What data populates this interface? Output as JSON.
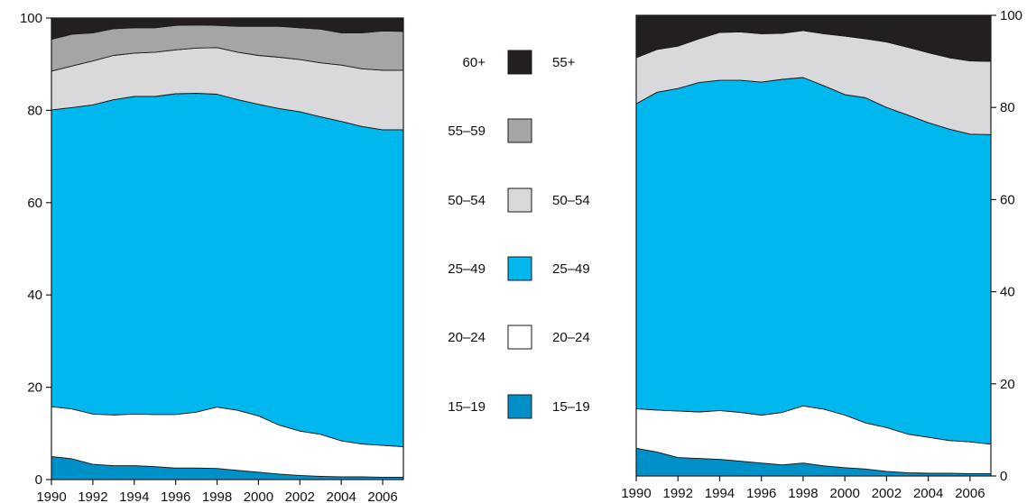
{
  "chart_data": [
    {
      "type": "area",
      "stacked": true,
      "x": [
        1990,
        1991,
        1992,
        1993,
        1994,
        1995,
        1996,
        1997,
        1998,
        1999,
        2000,
        2001,
        2002,
        2003,
        2004,
        2005,
        2006,
        2007
      ],
      "xticks": [
        "1990",
        "1992",
        "1994",
        "1996",
        "1998",
        "2000",
        "2002",
        "2004",
        "2006"
      ],
      "ylim": [
        0,
        100
      ],
      "yticks": [
        "0",
        "20",
        "40",
        "60",
        "80",
        "100"
      ],
      "yaxis_side": "left",
      "grid": false,
      "series": [
        {
          "name": "15–19",
          "color": "#0090c8",
          "values": [
            5.0,
            4.5,
            3.3,
            3.0,
            3.0,
            2.8,
            2.5,
            2.5,
            2.4,
            2.0,
            1.6,
            1.2,
            0.9,
            0.7,
            0.6,
            0.6,
            0.5,
            0.5
          ]
        },
        {
          "name": "20–24",
          "color": "#ffffff",
          "values": [
            10.8,
            10.8,
            10.9,
            11.0,
            11.2,
            11.3,
            11.6,
            12.1,
            13.3,
            13.0,
            12.2,
            10.6,
            9.6,
            9.1,
            7.8,
            7.1,
            6.9,
            6.6
          ]
        },
        {
          "name": "25–49",
          "color": "#00b8ee",
          "values": [
            64.3,
            65.3,
            67.0,
            68.3,
            68.8,
            68.9,
            69.5,
            69.1,
            67.8,
            67.3,
            67.5,
            68.6,
            69.2,
            68.8,
            69.2,
            68.8,
            68.4,
            68.7
          ]
        },
        {
          "name": "50–54",
          "color": "#d9d9db",
          "values": [
            8.4,
            9.0,
            9.5,
            9.6,
            9.4,
            9.6,
            9.5,
            9.8,
            10.1,
            10.3,
            10.6,
            11.1,
            11.3,
            11.7,
            12.2,
            12.5,
            12.9,
            12.9
          ]
        },
        {
          "name": "55–59",
          "color": "#a5a5a8",
          "values": [
            6.9,
            6.9,
            6.1,
            5.8,
            5.5,
            5.3,
            5.3,
            5.0,
            4.8,
            5.6,
            6.3,
            6.7,
            6.9,
            7.3,
            7.0,
            7.8,
            8.5,
            8.4
          ]
        },
        {
          "name": "60+",
          "color": "#231f20",
          "values": [
            4.6,
            3.5,
            3.2,
            2.3,
            2.1,
            2.1,
            1.6,
            1.5,
            1.6,
            1.8,
            1.8,
            1.8,
            2.1,
            2.4,
            3.2,
            3.2,
            2.8,
            2.9
          ]
        }
      ]
    },
    {
      "type": "area",
      "stacked": true,
      "x": [
        1990,
        1991,
        1992,
        1993,
        1994,
        1995,
        1996,
        1997,
        1998,
        1999,
        2000,
        2001,
        2002,
        2003,
        2004,
        2005,
        2006,
        2007
      ],
      "xticks": [
        "1990",
        "1992",
        "1994",
        "1996",
        "1998",
        "2000",
        "2002",
        "2004",
        "2006"
      ],
      "ylim": [
        0,
        100
      ],
      "yticks": [
        "0",
        "20",
        "40",
        "60",
        "80",
        "100"
      ],
      "yaxis_side": "right",
      "grid": false,
      "series": [
        {
          "name": "15–19",
          "color": "#0090c8",
          "values": [
            6.0,
            5.2,
            4.0,
            3.8,
            3.6,
            3.2,
            2.8,
            2.4,
            2.8,
            2.2,
            1.8,
            1.5,
            1.0,
            0.7,
            0.6,
            0.6,
            0.5,
            0.5
          ]
        },
        {
          "name": "20–24",
          "color": "#ffffff",
          "values": [
            8.6,
            9.1,
            10.1,
            10.1,
            10.6,
            10.6,
            10.4,
            11.4,
            12.4,
            12.3,
            11.4,
            10.0,
            9.5,
            8.4,
            7.8,
            7.1,
            6.9,
            6.4
          ]
        },
        {
          "name": "25–49",
          "color": "#00b8ee",
          "values": [
            66.2,
            69.0,
            70.0,
            71.5,
            71.7,
            72.1,
            72.3,
            72.3,
            71.3,
            70.2,
            69.6,
            70.6,
            69.5,
            69.3,
            68.3,
            67.6,
            66.8,
            67.2
          ]
        },
        {
          "name": "50–54",
          "color": "#d9d9db",
          "values": [
            10.0,
            9.3,
            9.2,
            9.5,
            10.4,
            10.5,
            10.5,
            10.0,
            10.2,
            11.3,
            12.7,
            12.8,
            14.2,
            14.7,
            15.2,
            15.5,
            15.9,
            15.9
          ]
        },
        {
          "name": "55+",
          "color": "#231f20",
          "values": [
            9.2,
            7.4,
            6.7,
            5.1,
            3.7,
            3.6,
            4.0,
            3.9,
            3.3,
            4.0,
            4.5,
            5.1,
            5.8,
            6.9,
            8.1,
            9.2,
            9.9,
            10.0
          ]
        }
      ]
    }
  ],
  "legend": {
    "left_labels": [
      "60+",
      "55–59",
      "50–54",
      "25–49",
      "20–24",
      "15–19"
    ],
    "right_labels": [
      "55+",
      "",
      "50–54",
      "25–49",
      "20–24",
      "15–19"
    ],
    "colors": [
      "#231f20",
      "#a5a5a8",
      "#d9d9db",
      "#00b8ee",
      "#ffffff",
      "#0090c8"
    ]
  }
}
